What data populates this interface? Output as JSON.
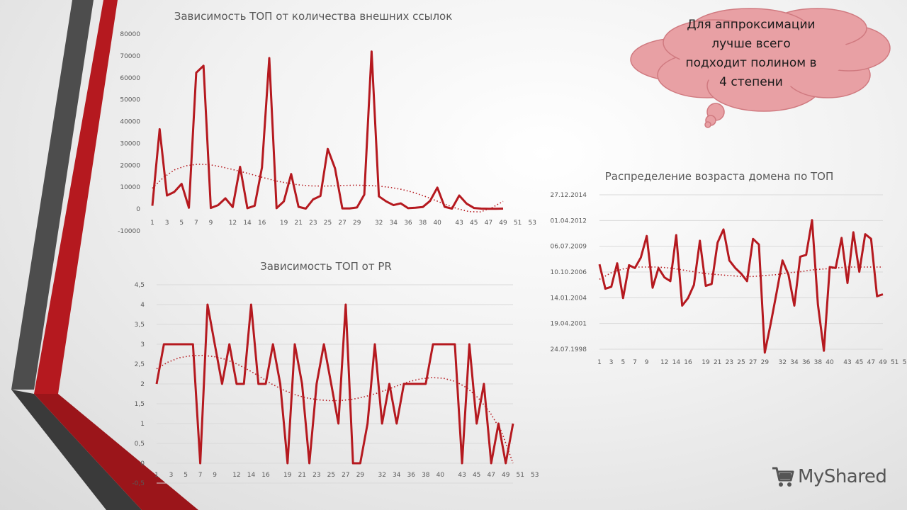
{
  "colors": {
    "accent": "#b5191f",
    "dark_stripe": "#4d4d4d",
    "red_stripe": "#b5191f",
    "callout_fill": "#e8a0a4",
    "callout_stroke": "#d07a80"
  },
  "callout": {
    "lines": [
      "Для аппроксимации",
      "лучше всего",
      "подходит полином в",
      "4 степени"
    ]
  },
  "logo": {
    "text": "MyShared",
    "icon": "cart-icon"
  },
  "chart_data": [
    {
      "type": "line",
      "title": "Зависимость ТОП от количества внешних ссылок",
      "y_ticks": [
        "80000",
        "70000",
        "60000",
        "50000",
        "40000",
        "30000",
        "20000",
        "10000",
        "0",
        "-10000"
      ],
      "ylim": [
        -10000,
        80000
      ],
      "x_ticks": [
        "1",
        "3",
        "5",
        "7",
        "9",
        "12",
        "14",
        "16",
        "19",
        "21",
        "23",
        "25",
        "27",
        "29",
        "32",
        "34",
        "36",
        "38",
        "40",
        "43",
        "45",
        "47",
        "49",
        "51",
        "53"
      ],
      "grid": false,
      "trendline": "polynomial",
      "series": [
        {
          "values": [
            1500,
            36500,
            6200,
            7800,
            11500,
            600,
            62300,
            65500,
            500,
            1800,
            4900,
            900,
            19300,
            400,
            1500,
            19000,
            69000,
            400,
            3500,
            16000,
            1000,
            200,
            4400,
            6000,
            27500,
            18600,
            300,
            300,
            700,
            6600,
            72000,
            5800,
            3500,
            1800,
            2600,
            400,
            600,
            900,
            3700,
            9800,
            1000,
            200,
            6200,
            2500,
            500,
            200,
            100,
            100,
            200
          ]
        }
      ],
      "trend": [
        9500,
        14500,
        18000,
        19800,
        20500,
        20300,
        19400,
        18200,
        16900,
        15500,
        14100,
        12800,
        11800,
        11000,
        10600,
        10500,
        10600,
        10800,
        10900,
        10800,
        10500,
        9900,
        9000,
        7700,
        6000,
        4000,
        1900,
        100,
        -1200,
        -1300,
        600,
        3500
      ]
    },
    {
      "type": "line",
      "title": "Зависимость ТОП от PR",
      "y_ticks": [
        "4,5",
        "4",
        "3,5",
        "3",
        "2,5",
        "2",
        "1,5",
        "1",
        "0,5",
        "0",
        "-0,5"
      ],
      "ylim": [
        -0.5,
        4.5
      ],
      "x_ticks": [
        "1",
        "3",
        "5",
        "7",
        "9",
        "12",
        "14",
        "16",
        "19",
        "21",
        "23",
        "25",
        "27",
        "29",
        "32",
        "34",
        "36",
        "38",
        "40",
        "43",
        "45",
        "47",
        "49",
        "51",
        "53"
      ],
      "grid": true,
      "trendline": "polynomial",
      "series": [
        {
          "values": [
            2,
            3,
            3,
            3,
            3,
            3,
            0,
            4,
            3,
            2,
            3,
            2,
            2,
            4,
            2,
            2,
            3,
            2,
            0,
            3,
            2,
            0,
            2,
            3,
            2,
            1,
            4,
            0,
            0,
            1,
            3,
            1,
            2,
            1,
            2,
            2,
            2,
            2,
            3,
            3,
            3,
            3,
            0,
            3,
            1,
            2,
            0,
            1,
            0,
            1
          ]
        }
      ],
      "trend": [
        2.38,
        2.55,
        2.66,
        2.71,
        2.72,
        2.69,
        2.62,
        2.5,
        2.35,
        2.18,
        2.0,
        1.85,
        1.73,
        1.65,
        1.6,
        1.58,
        1.58,
        1.61,
        1.67,
        1.75,
        1.85,
        1.96,
        2.06,
        2.13,
        2.16,
        2.14,
        2.06,
        1.9,
        1.64,
        1.28,
        0.8,
        0.0
      ]
    },
    {
      "type": "line",
      "title": "Распределение возраста домена по ТОП",
      "y_ticks": [
        "27.12.2014",
        "01.04.2012",
        "06.07.2009",
        "10.10.2006",
        "14.01.2004",
        "19.04.2001",
        "24.07.1998"
      ],
      "ylim": [
        "24.07.1998",
        "27.12.2014"
      ],
      "x_ticks": [
        "1",
        "3",
        "5",
        "7",
        "9",
        "12",
        "14",
        "16",
        "19",
        "21",
        "23",
        "25",
        "27",
        "29",
        "32",
        "34",
        "36",
        "38",
        "40",
        "43",
        "45",
        "47",
        "49",
        "51",
        "53"
      ],
      "grid": true,
      "trendline": "polynomial",
      "series": [
        {
          "values": [
            2007.6,
            2005.0,
            2005.2,
            2007.7,
            2004.0,
            2007.5,
            2007.2,
            2008.3,
            2010.6,
            2005.1,
            2007.2,
            2006.2,
            2005.8,
            2010.7,
            2003.2,
            2004.0,
            2005.4,
            2010.1,
            2005.3,
            2005.5,
            2009.9,
            2011.3,
            2008.0,
            2007.2,
            2006.6,
            2005.8,
            2010.3,
            2009.7,
            1998.2,
            2001.3,
            2004.6,
            2008.0,
            2006.5,
            2003.2,
            2008.4,
            2008.6,
            2012.3,
            2003.3,
            1998.4,
            2007.3,
            2007.2,
            2010.4,
            2005.6,
            2011.0,
            2006.8,
            2010.8,
            2010.3,
            2004.2,
            2004.4
          ]
        }
      ],
      "trend": [
        2006.0,
        2006.7,
        2007.1,
        2007.3,
        2007.3,
        2007.3,
        2007.2,
        2007.0,
        2006.8,
        2006.6,
        2006.5,
        2006.4,
        2006.3,
        2006.3,
        2006.4,
        2006.5,
        2006.7,
        2006.8,
        2007.0,
        2007.1,
        2007.2,
        2007.3,
        2007.3,
        2007.3,
        2007.3
      ]
    }
  ]
}
